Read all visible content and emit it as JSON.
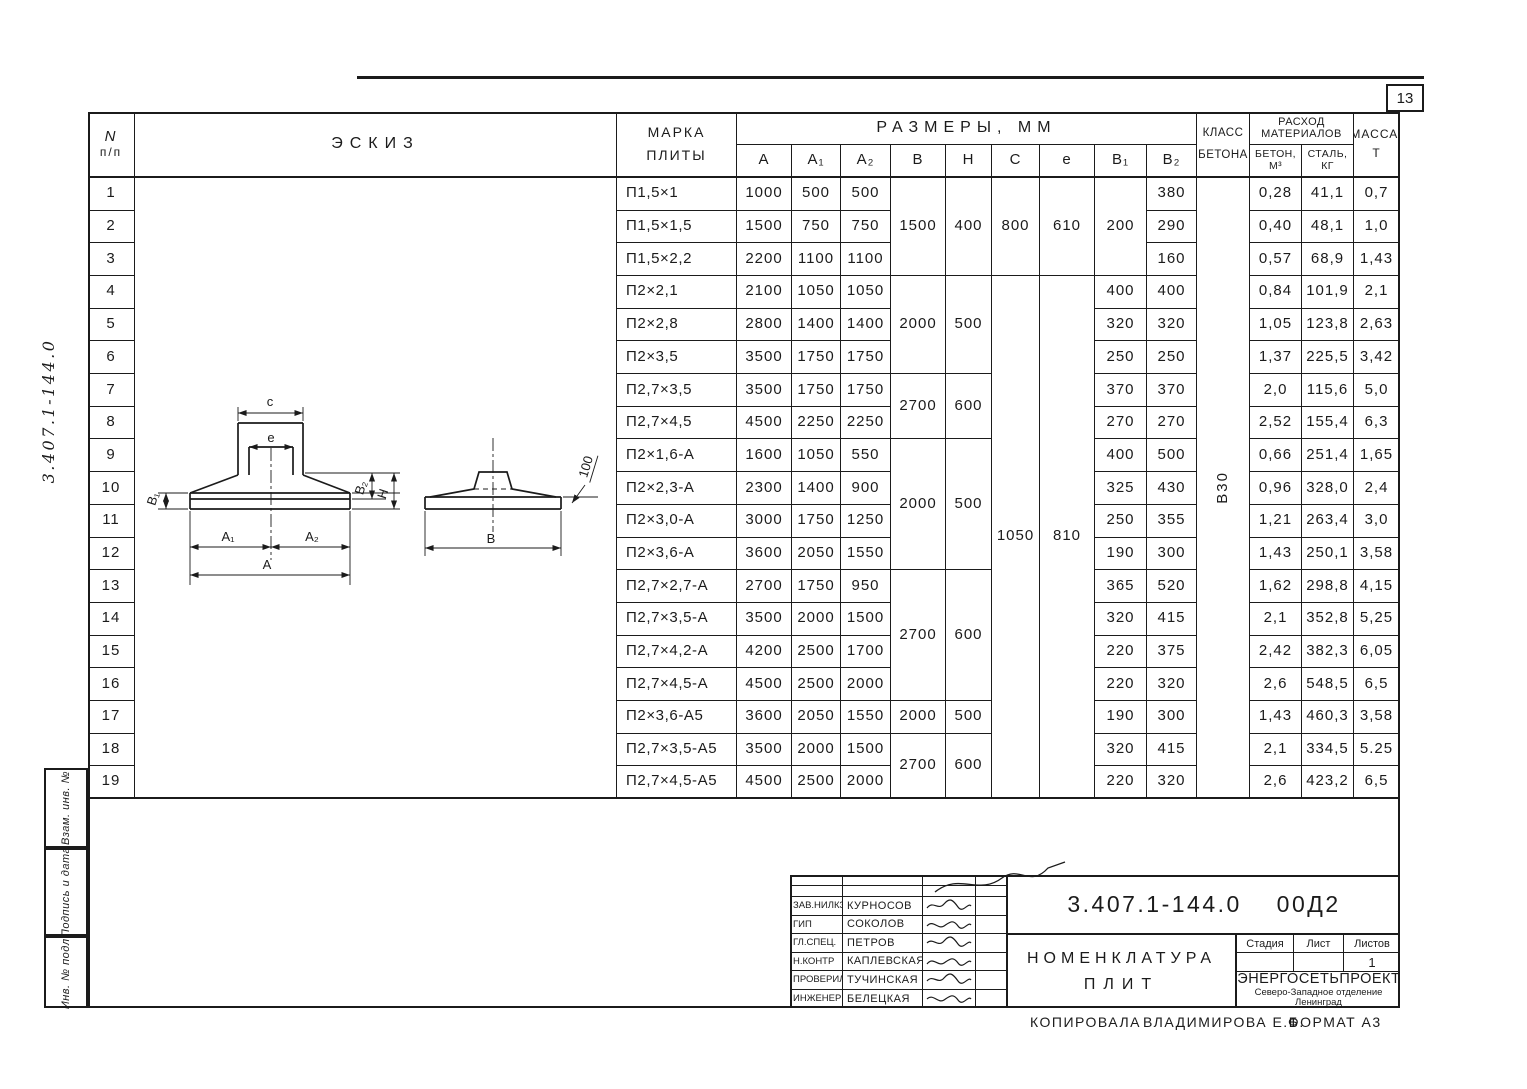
{
  "page": {
    "number": "13",
    "side_number": "3.407.1-144.0",
    "copied_label": "КОПИРОВАЛА",
    "copied_name": "ВЛАДИМИРОВА Е.Б.",
    "format": "ФОРМАТ А3"
  },
  "margin": {
    "boxes": [
      "Взам. инв. №",
      "Подпись и дата",
      "Инв. № подл."
    ]
  },
  "table": {
    "headers": {
      "num": [
        "N",
        "п/п"
      ],
      "sketch": "ЭСКИЗ",
      "mark": [
        "МАРКА",
        "ПЛИТЫ"
      ],
      "dims": "РАЗМЕРЫ, ММ",
      "dim_cols": [
        "А",
        "А₁",
        "А₂",
        "В",
        "Н",
        "С",
        "е",
        "В₁",
        "В₂"
      ],
      "klass": [
        "КЛАСС",
        "БЕТОНА"
      ],
      "materials": [
        "РАСХОД",
        "МАТЕРИАЛОВ"
      ],
      "concrete": [
        "БЕТОН,",
        "М³"
      ],
      "steel": [
        "СТАЛЬ,",
        "КГ"
      ],
      "mass": [
        "МАССА,",
        "Т"
      ]
    },
    "concrete_class_value": "В30",
    "merges": {
      "B": [
        {
          "v": "1500",
          "r": [
            1,
            3
          ]
        },
        {
          "v": "2000",
          "r": [
            4,
            6
          ]
        },
        {
          "v": "2700",
          "r": [
            7,
            8
          ]
        },
        {
          "v": "2000",
          "r": [
            9,
            12
          ]
        },
        {
          "v": "2700",
          "r": [
            13,
            16
          ]
        },
        {
          "v": "2000",
          "r": [
            17,
            17
          ]
        },
        {
          "v": "2700",
          "r": [
            18,
            19
          ]
        }
      ],
      "H": [
        {
          "v": "400",
          "r": [
            1,
            3
          ]
        },
        {
          "v": "500",
          "r": [
            4,
            6
          ]
        },
        {
          "v": "600",
          "r": [
            7,
            8
          ]
        },
        {
          "v": "500",
          "r": [
            9,
            12
          ]
        },
        {
          "v": "600",
          "r": [
            13,
            16
          ]
        },
        {
          "v": "500",
          "r": [
            17,
            17
          ]
        },
        {
          "v": "600",
          "r": [
            18,
            19
          ]
        }
      ],
      "C": [
        {
          "v": "800",
          "r": [
            1,
            3
          ]
        },
        {
          "v": "1050",
          "r": [
            4,
            19
          ]
        }
      ],
      "e": [
        {
          "v": "610",
          "r": [
            1,
            3
          ]
        },
        {
          "v": "810",
          "r": [
            4,
            19
          ]
        }
      ],
      "B1": [
        {
          "v": "200",
          "r": [
            1,
            3
          ]
        }
      ]
    },
    "rows": [
      {
        "num": "1",
        "mark": "П1,5×1",
        "A": "1000",
        "A1": "500",
        "A2": "500",
        "b2": "380",
        "concrete": "0,28",
        "steel": "41,1",
        "mass": "0,7"
      },
      {
        "num": "2",
        "mark": "П1,5×1,5",
        "A": "1500",
        "A1": "750",
        "A2": "750",
        "b2": "290",
        "concrete": "0,40",
        "steel": "48,1",
        "mass": "1,0"
      },
      {
        "num": "3",
        "mark": "П1,5×2,2",
        "A": "2200",
        "A1": "1100",
        "A2": "1100",
        "b2": "160",
        "concrete": "0,57",
        "steel": "68,9",
        "mass": "1,43"
      },
      {
        "num": "4",
        "mark": "П2×2,1",
        "A": "2100",
        "A1": "1050",
        "A2": "1050",
        "b1": "400",
        "b2": "400",
        "concrete": "0,84",
        "steel": "101,9",
        "mass": "2,1"
      },
      {
        "num": "5",
        "mark": "П2×2,8",
        "A": "2800",
        "A1": "1400",
        "A2": "1400",
        "b1": "320",
        "b2": "320",
        "concrete": "1,05",
        "steel": "123,8",
        "mass": "2,63"
      },
      {
        "num": "6",
        "mark": "П2×3,5",
        "A": "3500",
        "A1": "1750",
        "A2": "1750",
        "b1": "250",
        "b2": "250",
        "concrete": "1,37",
        "steel": "225,5",
        "mass": "3,42"
      },
      {
        "num": "7",
        "mark": "П2,7×3,5",
        "A": "3500",
        "A1": "1750",
        "A2": "1750",
        "b1": "370",
        "b2": "370",
        "concrete": "2,0",
        "steel": "115,6",
        "mass": "5,0"
      },
      {
        "num": "8",
        "mark": "П2,7×4,5",
        "A": "4500",
        "A1": "2250",
        "A2": "2250",
        "b1": "270",
        "b2": "270",
        "concrete": "2,52",
        "steel": "155,4",
        "mass": "6,3"
      },
      {
        "num": "9",
        "mark": "П2×1,6-А",
        "A": "1600",
        "A1": "1050",
        "A2": "550",
        "b1": "400",
        "b2": "500",
        "concrete": "0,66",
        "steel": "251,4",
        "mass": "1,65"
      },
      {
        "num": "10",
        "mark": "П2×2,3-А",
        "A": "2300",
        "A1": "1400",
        "A2": "900",
        "b1": "325",
        "b2": "430",
        "concrete": "0,96",
        "steel": "328,0",
        "mass": "2,4"
      },
      {
        "num": "11",
        "mark": "П2×3,0-А",
        "A": "3000",
        "A1": "1750",
        "A2": "1250",
        "b1": "250",
        "b2": "355",
        "concrete": "1,21",
        "steel": "263,4",
        "mass": "3,0"
      },
      {
        "num": "12",
        "mark": "П2×3,6-А",
        "A": "3600",
        "A1": "2050",
        "A2": "1550",
        "b1": "190",
        "b2": "300",
        "concrete": "1,43",
        "steel": "250,1",
        "mass": "3,58"
      },
      {
        "num": "13",
        "mark": "П2,7×2,7-А",
        "A": "2700",
        "A1": "1750",
        "A2": "950",
        "b1": "365",
        "b2": "520",
        "concrete": "1,62",
        "steel": "298,8",
        "mass": "4,15"
      },
      {
        "num": "14",
        "mark": "П2,7×3,5-А",
        "A": "3500",
        "A1": "2000",
        "A2": "1500",
        "b1": "320",
        "b2": "415",
        "concrete": "2,1",
        "steel": "352,8",
        "mass": "5,25"
      },
      {
        "num": "15",
        "mark": "П2,7×4,2-А",
        "A": "4200",
        "A1": "2500",
        "A2": "1700",
        "b1": "220",
        "b2": "375",
        "concrete": "2,42",
        "steel": "382,3",
        "mass": "6,05"
      },
      {
        "num": "16",
        "mark": "П2,7×4,5-А",
        "A": "4500",
        "A1": "2500",
        "A2": "2000",
        "b1": "220",
        "b2": "320",
        "concrete": "2,6",
        "steel": "548,5",
        "mass": "6,5"
      },
      {
        "num": "17",
        "mark": "П2×3,6-А5",
        "A": "3600",
        "A1": "2050",
        "A2": "1550",
        "b1": "190",
        "b2": "300",
        "concrete": "1,43",
        "steel": "460,3",
        "mass": "3,58"
      },
      {
        "num": "18",
        "mark": "П2,7×3,5-А5",
        "A": "3500",
        "A1": "2000",
        "A2": "1500",
        "b1": "320",
        "b2": "415",
        "concrete": "2,1",
        "steel": "334,5",
        "mass": "5.25"
      },
      {
        "num": "19",
        "mark": "П2,7×4,5-А5",
        "A": "4500",
        "A1": "2500",
        "A2": "2000",
        "b1": "220",
        "b2": "320",
        "concrete": "2,6",
        "steel": "423,2",
        "mass": "6,5"
      }
    ]
  },
  "sketch": {
    "labels": {
      "c": "с",
      "e": "е",
      "b1": "В₁",
      "b2": "В₂",
      "h": "Н",
      "a1": "А₁",
      "a2": "А₂",
      "a": "А",
      "b": "В",
      "d100": "100"
    }
  },
  "stamp": {
    "doc_number": "3.407.1-144.0  00Д2",
    "title_line1": "НОМЕНКЛАТУРА",
    "title_line2": "ПЛИТ",
    "stage_label": "Стадия",
    "sheet_label": "Лист",
    "sheets_label": "Листов",
    "sheets_value": "1",
    "org1": "«ЭНЕРГОСЕТЬПРОЕКТ»",
    "org2": "Северо-Западное отделение",
    "org3": "Ленинград",
    "signatories": [
      {
        "role": "ЗАВ.НИЛКЗ",
        "name": "КУРНОСОВ"
      },
      {
        "role": "ГИП",
        "name": "СОКОЛОВ"
      },
      {
        "role": "ГЛ.СПЕЦ.",
        "name": "ПЕТРОВ"
      },
      {
        "role": "Н.КОНТР",
        "name": "КАПЛЕВСКАЯ"
      },
      {
        "role": "ПРОВЕРИЛ",
        "name": "ТУЧИНСКАЯ"
      },
      {
        "role": "ИНЖЕНЕР",
        "name": "БЕЛЕЦКАЯ"
      }
    ]
  }
}
